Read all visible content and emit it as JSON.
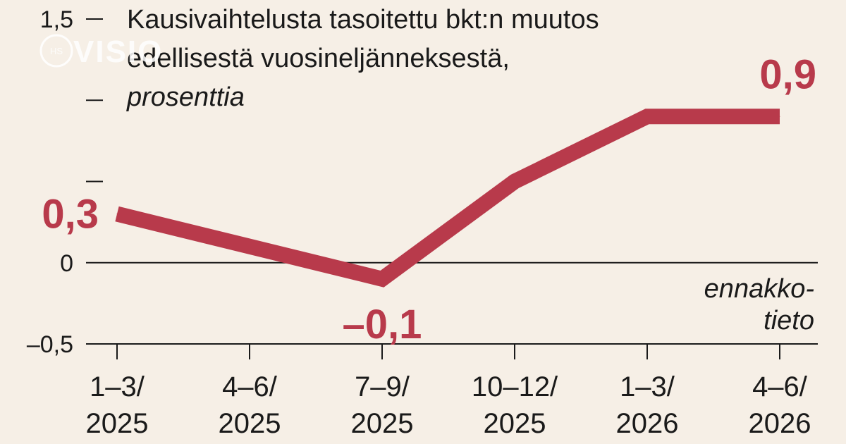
{
  "chart_data": {
    "type": "line",
    "title_lines": [
      "Kausivaihtelusta tasoitettu bkt:n muutos",
      "edellisestä vuosineljänneksestä,"
    ],
    "unit": "prosenttia",
    "categories": [
      [
        "1–3/",
        "2025"
      ],
      [
        "4–6/",
        "2025"
      ],
      [
        "7–9/",
        "2025"
      ],
      [
        "10–12/",
        "2025"
      ],
      [
        "1–3/",
        "2026"
      ],
      [
        "4–6/",
        "2026"
      ]
    ],
    "values": [
      0.3,
      0.1,
      -0.1,
      0.5,
      0.9,
      0.9
    ],
    "data_labels": [
      {
        "index": 0,
        "text": "0,3"
      },
      {
        "index": 2,
        "text": "–0,1"
      },
      {
        "index": 5,
        "text": "0,9"
      }
    ],
    "ylim": [
      -0.5,
      1.5
    ],
    "y_labeled_ticks": [
      {
        "value": 1.5,
        "label": "1,5"
      },
      {
        "value": 0,
        "label": "0"
      },
      {
        "value": -0.5,
        "label": "–0,5"
      }
    ],
    "y_minor_ticks": [
      1.0,
      0.5
    ],
    "note_lines": [
      "ennakko-",
      "tieto"
    ],
    "line_color": "#b83a4b",
    "background": "#f6efe6"
  },
  "watermark": {
    "text": "VISIO",
    "small": "HS"
  }
}
